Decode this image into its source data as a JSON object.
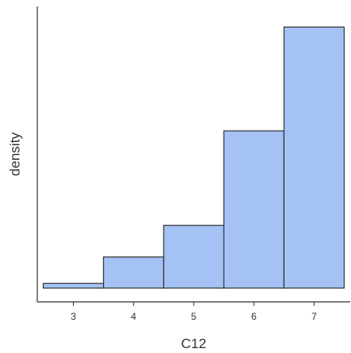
{
  "chart_data": {
    "type": "bar",
    "subtype": "histogram",
    "title": "",
    "xlabel": "C12",
    "ylabel": "density",
    "x_ticks": [
      "3",
      "4",
      "5",
      "6",
      "7"
    ],
    "y_ticks_shown": false,
    "grid": false,
    "legend": "none",
    "xlim": [
      2.4,
      7.6
    ],
    "ylim": [
      0,
      0.48
    ],
    "bins": [
      {
        "start": 2.5,
        "end": 3.5,
        "density": 0.008
      },
      {
        "start": 3.5,
        "end": 4.5,
        "density": 0.053
      },
      {
        "start": 4.5,
        "end": 5.5,
        "density": 0.107
      },
      {
        "start": 5.5,
        "end": 6.5,
        "density": 0.268
      },
      {
        "start": 6.5,
        "end": 7.5,
        "density": 0.445
      }
    ],
    "colors": {
      "bar_fill": "#a4c2f4",
      "bar_stroke": "#333333",
      "axis": "#333333"
    }
  }
}
